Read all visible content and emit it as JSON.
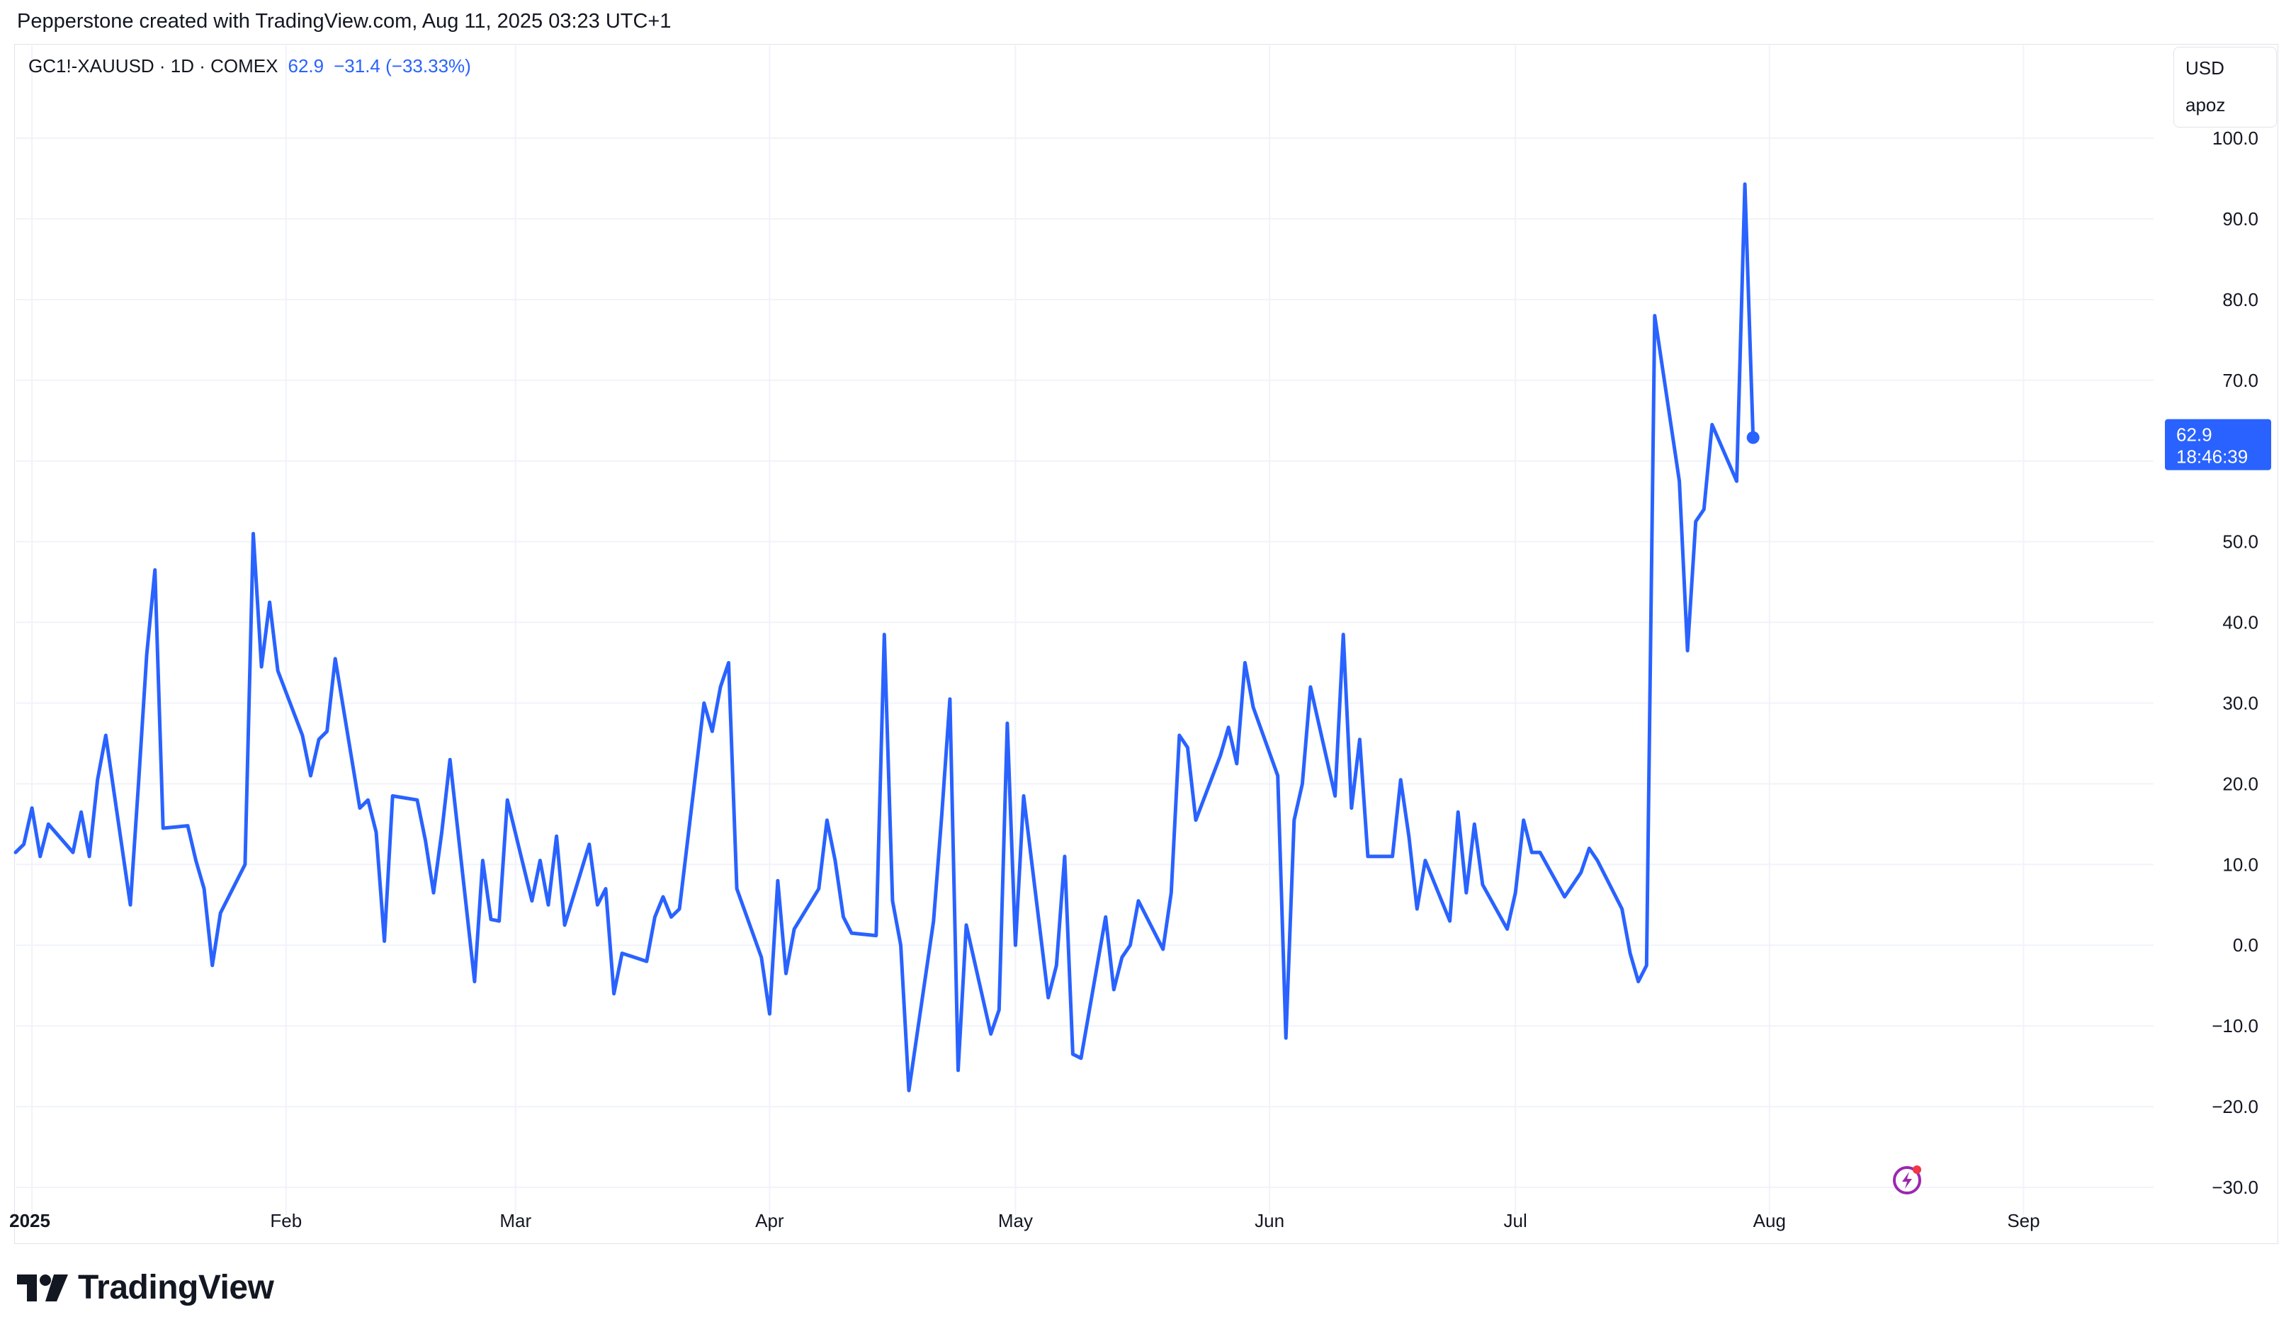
{
  "header": {
    "title": "Pepperstone created with TradingView.com, Aug 11, 2025 03:23 UTC+1"
  },
  "legend": {
    "symbol": "GC1!-XAUUSD · 1D · COMEX",
    "value": "62.9",
    "change": "−31.4 (−33.33%)"
  },
  "scale_box": {
    "currency": "USD",
    "mode": "apoz"
  },
  "price_label": {
    "value": "62.9",
    "countdown": "18:46:39"
  },
  "logo": {
    "text": "TradingView"
  },
  "icons": {
    "flash": "lightning-bolt-icon"
  },
  "colors": {
    "line": "#2962ff",
    "grid": "#f0f3fa",
    "axis_text": "#131722"
  },
  "chart_data": {
    "type": "line",
    "title": "GC1!-XAUUSD · 1D · COMEX",
    "xlabel": "",
    "ylabel": "",
    "x_ticks": [
      {
        "label": "2025",
        "date": "2025-01-01",
        "bold": true
      },
      {
        "label": "Feb",
        "date": "2025-02-01"
      },
      {
        "label": "Mar",
        "date": "2025-03-01"
      },
      {
        "label": "Apr",
        "date": "2025-04-01"
      },
      {
        "label": "May",
        "date": "2025-05-01"
      },
      {
        "label": "Jun",
        "date": "2025-06-01"
      },
      {
        "label": "Jul",
        "date": "2025-07-01"
      },
      {
        "label": "Aug",
        "date": "2025-08-01"
      },
      {
        "label": "Sep",
        "date": "2025-09-01"
      }
    ],
    "xlim": [
      "2024-12-30",
      "2025-09-16"
    ],
    "y_ticks": [
      "100.0",
      "90.0",
      "80.0",
      "70.0",
      "60.0",
      "50.0",
      "40.0",
      "30.0",
      "20.0",
      "10.0",
      "0.0",
      "−10.0",
      "−20.0",
      "−30.0"
    ],
    "ylim": [
      -30,
      100
    ],
    "grid": true,
    "series": [
      {
        "points": [
          [
            "2024-12-30",
            11.5
          ],
          [
            "2024-12-31",
            12.5
          ],
          [
            "2025-01-01",
            17
          ],
          [
            "2025-01-02",
            11
          ],
          [
            "2025-01-03",
            15
          ],
          [
            "2025-01-06",
            11.5
          ],
          [
            "2025-01-07",
            16.5
          ],
          [
            "2025-01-08",
            11
          ],
          [
            "2025-01-09",
            20.5
          ],
          [
            "2025-01-10",
            26
          ],
          [
            "2025-01-13",
            5
          ],
          [
            "2025-01-14",
            20
          ],
          [
            "2025-01-15",
            36
          ],
          [
            "2025-01-16",
            46.5
          ],
          [
            "2025-01-17",
            14.5
          ],
          [
            "2025-01-20",
            14.8
          ],
          [
            "2025-01-21",
            10.5
          ],
          [
            "2025-01-22",
            7
          ],
          [
            "2025-01-23",
            -2.5
          ],
          [
            "2025-01-24",
            4
          ],
          [
            "2025-01-27",
            10
          ],
          [
            "2025-01-28",
            51
          ],
          [
            "2025-01-29",
            34.5
          ],
          [
            "2025-01-30",
            42.5
          ],
          [
            "2025-01-31",
            34
          ],
          [
            "2025-02-03",
            26
          ],
          [
            "2025-02-04",
            21
          ],
          [
            "2025-02-05",
            25.5
          ],
          [
            "2025-02-06",
            26.5
          ],
          [
            "2025-02-07",
            35.5
          ],
          [
            "2025-02-10",
            17
          ],
          [
            "2025-02-11",
            18
          ],
          [
            "2025-02-12",
            14
          ],
          [
            "2025-02-13",
            0.5
          ],
          [
            "2025-02-14",
            18.5
          ],
          [
            "2025-02-17",
            18
          ],
          [
            "2025-02-18",
            13
          ],
          [
            "2025-02-19",
            6.5
          ],
          [
            "2025-02-20",
            14
          ],
          [
            "2025-02-21",
            23
          ],
          [
            "2025-02-24",
            -4.5
          ],
          [
            "2025-02-25",
            10.5
          ],
          [
            "2025-02-26",
            3.2
          ],
          [
            "2025-02-27",
            3
          ],
          [
            "2025-02-28",
            18
          ],
          [
            "2025-03-03",
            5.5
          ],
          [
            "2025-03-04",
            10.5
          ],
          [
            "2025-03-05",
            5
          ],
          [
            "2025-03-06",
            13.5
          ],
          [
            "2025-03-07",
            2.5
          ],
          [
            "2025-03-10",
            12.5
          ],
          [
            "2025-03-11",
            5
          ],
          [
            "2025-03-12",
            7
          ],
          [
            "2025-03-13",
            -6
          ],
          [
            "2025-03-14",
            -1
          ],
          [
            "2025-03-17",
            -2
          ],
          [
            "2025-03-18",
            3.5
          ],
          [
            "2025-03-19",
            6
          ],
          [
            "2025-03-20",
            3.5
          ],
          [
            "2025-03-21",
            4.5
          ],
          [
            "2025-03-24",
            30
          ],
          [
            "2025-03-25",
            26.5
          ],
          [
            "2025-03-26",
            32
          ],
          [
            "2025-03-27",
            35
          ],
          [
            "2025-03-28",
            7
          ],
          [
            "2025-03-31",
            -1.5
          ],
          [
            "2025-04-01",
            -8.5
          ],
          [
            "2025-04-02",
            8
          ],
          [
            "2025-04-03",
            -3.5
          ],
          [
            "2025-04-04",
            2
          ],
          [
            "2025-04-07",
            7
          ],
          [
            "2025-04-08",
            15.5
          ],
          [
            "2025-04-09",
            10.5
          ],
          [
            "2025-04-10",
            3.5
          ],
          [
            "2025-04-11",
            1.5
          ],
          [
            "2025-04-14",
            1.2
          ],
          [
            "2025-04-15",
            38.5
          ],
          [
            "2025-04-16",
            5.5
          ],
          [
            "2025-04-17",
            0
          ],
          [
            "2025-04-18",
            -18
          ],
          [
            "2025-04-21",
            3
          ],
          [
            "2025-04-22",
            16
          ],
          [
            "2025-04-23",
            30.5
          ],
          [
            "2025-04-24",
            -15.5
          ],
          [
            "2025-04-25",
            2.5
          ],
          [
            "2025-04-28",
            -11
          ],
          [
            "2025-04-29",
            -8
          ],
          [
            "2025-04-30",
            27.5
          ],
          [
            "2025-05-01",
            0
          ],
          [
            "2025-05-02",
            18.5
          ],
          [
            "2025-05-05",
            -6.5
          ],
          [
            "2025-05-06",
            -2.5
          ],
          [
            "2025-05-07",
            11
          ],
          [
            "2025-05-08",
            -13.5
          ],
          [
            "2025-05-09",
            -14
          ],
          [
            "2025-05-12",
            3.5
          ],
          [
            "2025-05-13",
            -5.5
          ],
          [
            "2025-05-14",
            -1.5
          ],
          [
            "2025-05-15",
            0
          ],
          [
            "2025-05-16",
            5.5
          ],
          [
            "2025-05-19",
            -0.5
          ],
          [
            "2025-05-20",
            6.5
          ],
          [
            "2025-05-21",
            26
          ],
          [
            "2025-05-22",
            24.5
          ],
          [
            "2025-05-23",
            15.5
          ],
          [
            "2025-05-26",
            23.5
          ],
          [
            "2025-05-27",
            27
          ],
          [
            "2025-05-28",
            22.5
          ],
          [
            "2025-05-29",
            35
          ],
          [
            "2025-05-30",
            29.5
          ],
          [
            "2025-06-02",
            21
          ],
          [
            "2025-06-03",
            -11.5
          ],
          [
            "2025-06-04",
            15.5
          ],
          [
            "2025-06-05",
            20
          ],
          [
            "2025-06-06",
            32
          ],
          [
            "2025-06-09",
            18.5
          ],
          [
            "2025-06-10",
            38.5
          ],
          [
            "2025-06-11",
            17
          ],
          [
            "2025-06-12",
            25.5
          ],
          [
            "2025-06-13",
            11
          ],
          [
            "2025-06-16",
            11
          ],
          [
            "2025-06-17",
            20.5
          ],
          [
            "2025-06-18",
            13.5
          ],
          [
            "2025-06-19",
            4.5
          ],
          [
            "2025-06-20",
            10.5
          ],
          [
            "2025-06-23",
            3
          ],
          [
            "2025-06-24",
            16.5
          ],
          [
            "2025-06-25",
            6.5
          ],
          [
            "2025-06-26",
            15
          ],
          [
            "2025-06-27",
            7.5
          ],
          [
            "2025-06-30",
            2
          ],
          [
            "2025-07-01",
            6.5
          ],
          [
            "2025-07-02",
            15.5
          ],
          [
            "2025-07-03",
            11.5
          ],
          [
            "2025-07-04",
            11.5
          ],
          [
            "2025-07-07",
            6
          ],
          [
            "2025-07-08",
            7.5
          ],
          [
            "2025-07-09",
            9
          ],
          [
            "2025-07-10",
            12
          ],
          [
            "2025-07-11",
            10.5
          ],
          [
            "2025-07-14",
            4.5
          ],
          [
            "2025-07-15",
            -1
          ],
          [
            "2025-07-16",
            -4.5
          ],
          [
            "2025-07-17",
            -2.5
          ],
          [
            "2025-07-18",
            78
          ],
          [
            "2025-07-21",
            57.5
          ],
          [
            "2025-07-22",
            36.5
          ],
          [
            "2025-07-23",
            52.5
          ],
          [
            "2025-07-24",
            54
          ],
          [
            "2025-07-25",
            64.5
          ],
          [
            "2025-07-28",
            57.5
          ],
          [
            "2025-07-29",
            94.3
          ],
          [
            "2025-07-30",
            62.9
          ]
        ]
      }
    ],
    "last_value": 62.9,
    "last_date": "2025-07-30"
  }
}
